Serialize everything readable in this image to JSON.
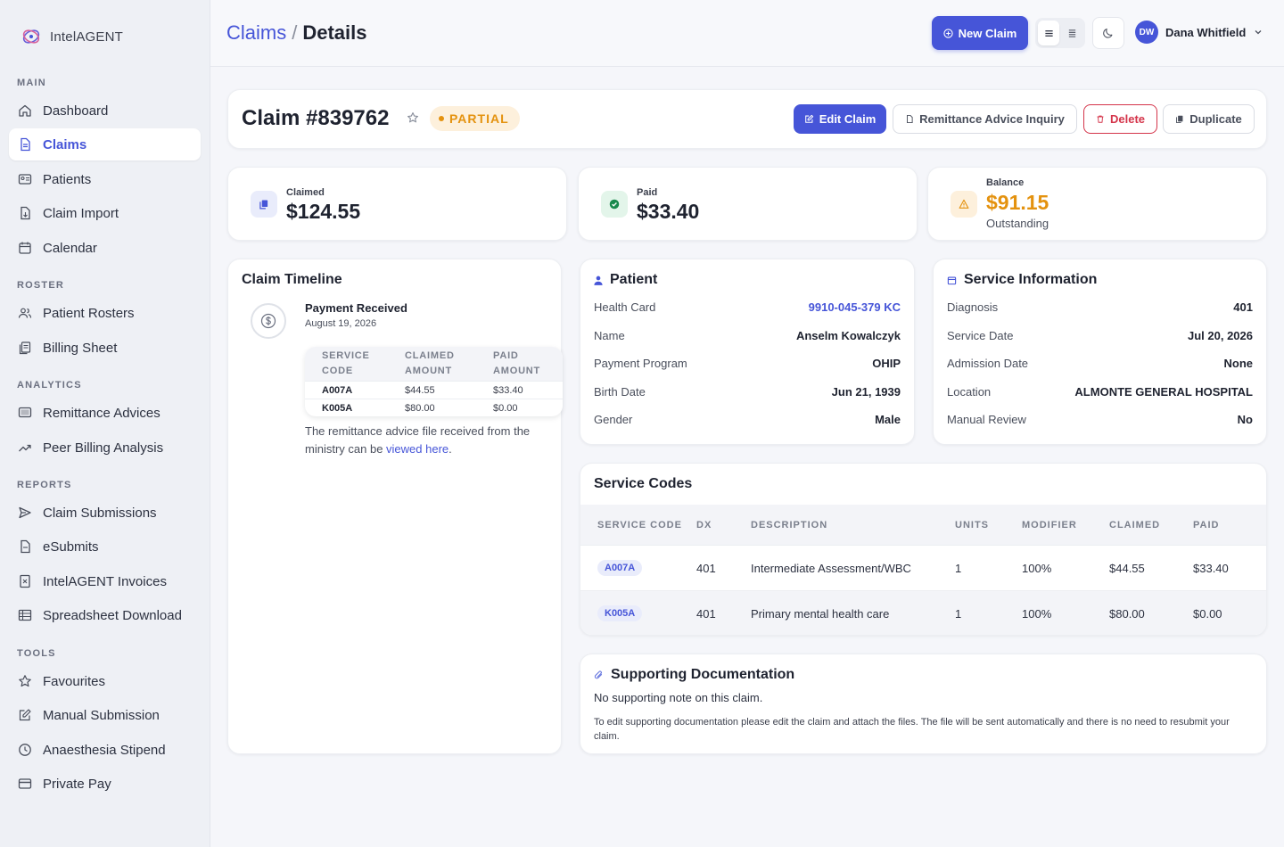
{
  "brand": {
    "name": "IntelAGENT"
  },
  "sidebar": {
    "sections": {
      "main": "MAIN",
      "roster": "ROSTER",
      "analytics": "ANALYTICS",
      "reports": "REPORTS",
      "tools": "TOOLS"
    },
    "items": {
      "dashboard": "Dashboard",
      "claims": "Claims",
      "patients": "Patients",
      "claim_import": "Claim Import",
      "calendar": "Calendar",
      "patient_rosters": "Patient Rosters",
      "billing_sheet": "Billing Sheet",
      "remittance_advices": "Remittance Advices",
      "peer_billing": "Peer Billing Analysis",
      "claim_submissions": "Claim Submissions",
      "esubmits": "eSubmits",
      "invoices": "IntelAGENT Invoices",
      "spreadsheet": "Spreadsheet Download",
      "favourites": "Favourites",
      "manual_submission": "Manual Submission",
      "anaesthesia": "Anaesthesia Stipend",
      "private_pay": "Private Pay"
    },
    "active": "claims"
  },
  "header": {
    "breadcrumb_parent": "Claims",
    "breadcrumb_sep": "/",
    "breadcrumb_current": "Details",
    "new_claim": "New Claim",
    "user_initials": "DW",
    "user_name": "Dana Whitfield"
  },
  "claim": {
    "title": "Claim #839762",
    "status": "PARTIAL",
    "actions": {
      "edit": "Edit Claim",
      "remittance": "Remittance Advice Inquiry",
      "delete": "Delete",
      "duplicate": "Duplicate"
    }
  },
  "stats": {
    "claimed": {
      "label": "Claimed",
      "value": "$124.55"
    },
    "paid": {
      "label": "Paid",
      "value": "$33.40"
    },
    "balance": {
      "label": "Balance",
      "value": "$91.15",
      "sub": "Outstanding"
    }
  },
  "timeline": {
    "title": "Claim Timeline",
    "event_title": "Payment Received",
    "event_date": "August 19, 2026",
    "headers": [
      "SERVICE CODE",
      "CLAIMED AMOUNT",
      "PAID AMOUNT"
    ],
    "rows": [
      [
        "A007A",
        "$44.55",
        "$33.40"
      ],
      [
        "K005A",
        "$80.00",
        "$0.00"
      ]
    ],
    "note_prefix": "The remittance advice file received from the ministry can be ",
    "note_link": "viewed here",
    "note_suffix": "."
  },
  "patient": {
    "title": "Patient",
    "fields": [
      {
        "label": "Health Card",
        "value": "9910-045-379 KC"
      },
      {
        "label": "Name",
        "value": "Anselm Kowalczyk"
      },
      {
        "label": "Payment Program",
        "value": "OHIP"
      },
      {
        "label": "Birth Date",
        "value": "Jun 21, 1939"
      },
      {
        "label": "Gender",
        "value": "Male"
      }
    ]
  },
  "service_info": {
    "title": "Service Information",
    "fields": [
      {
        "label": "Diagnosis",
        "value": "401"
      },
      {
        "label": "Service Date",
        "value": "Jul 20, 2026"
      },
      {
        "label": "Admission Date",
        "value": "None"
      },
      {
        "label": "Location",
        "value": "ALMONTE GENERAL HOSPITAL"
      },
      {
        "label": "Manual Review",
        "value": "No"
      }
    ]
  },
  "service_codes": {
    "title": "Service Codes",
    "headers": [
      "SERVICE CODE",
      "DX",
      "DESCRIPTION",
      "UNITS",
      "MODIFIER",
      "CLAIMED",
      "PAID"
    ],
    "rows": [
      [
        "A007A",
        "401",
        "Intermediate Assessment/WBC",
        "1",
        "100%",
        "$44.55",
        "$33.40"
      ],
      [
        "K005A",
        "401",
        "Primary mental health care",
        "1",
        "100%",
        "$80.00",
        "$0.00"
      ]
    ]
  },
  "docs": {
    "title": "Supporting Documentation",
    "note": "No supporting note on this claim.",
    "sub": "To edit supporting documentation please edit the claim and attach the files. The file will be sent automatically and there is no need to resubmit your claim."
  },
  "colors": {
    "accent": "#4655d8",
    "warning": "#e4920f",
    "danger": "#d4344a",
    "success": "#1a8a4e"
  }
}
